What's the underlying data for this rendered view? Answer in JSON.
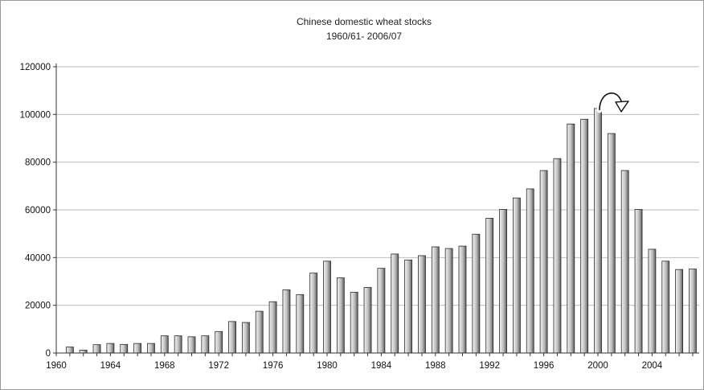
{
  "chart_data": {
    "type": "bar",
    "title": "Chinese domestic wheat stocks",
    "subtitle": "1960/61- 2006/07",
    "xlabel": "",
    "ylabel": "",
    "ylim": [
      0,
      120000
    ],
    "xlim": [
      1960,
      2007
    ],
    "grid": true,
    "legend": "none",
    "y_ticks": [
      "0",
      "20000",
      "40000",
      "60000",
      "80000",
      "100000",
      "120000"
    ],
    "x_ticks": [
      "1960",
      "1964",
      "1968",
      "1972",
      "1976",
      "1980",
      "1984",
      "1988",
      "1992",
      "1996",
      "2000",
      "2004"
    ],
    "x_tick_values": [
      1960,
      1964,
      1968,
      1972,
      1976,
      1980,
      1984,
      1988,
      1992,
      1996,
      2000,
      2004
    ],
    "categories": [
      1961,
      1962,
      1963,
      1964,
      1965,
      1966,
      1967,
      1968,
      1969,
      1970,
      1971,
      1972,
      1973,
      1974,
      1975,
      1976,
      1977,
      1978,
      1979,
      1980,
      1981,
      1982,
      1983,
      1984,
      1985,
      1986,
      1987,
      1988,
      1989,
      1990,
      1991,
      1992,
      1993,
      1994,
      1995,
      1996,
      1997,
      1998,
      1999,
      2000,
      2001,
      2002,
      2003,
      2004,
      2005,
      2006,
      2007
    ],
    "values": [
      2500,
      1200,
      3500,
      4000,
      3600,
      4000,
      4000,
      7200,
      7200,
      6800,
      7200,
      9000,
      13200,
      12800,
      17500,
      21500,
      26500,
      24500,
      33500,
      38500,
      31500,
      25500,
      27500,
      35500,
      41500,
      39000,
      40800,
      44500,
      43800,
      44800,
      49800,
      56500,
      60200,
      65000,
      68800,
      76500,
      81500,
      96000,
      98000,
      102500,
      92000,
      76500,
      60200,
      43500,
      38500,
      35000,
      35200
    ],
    "annotation": "curved-arrow",
    "colors": {
      "bar_light": "#f2f2f2",
      "bar_dark": "#6a6a6a",
      "bar_edge": "#2a2a2a",
      "grid": "#bdbdbd",
      "axis": "#333333"
    }
  }
}
